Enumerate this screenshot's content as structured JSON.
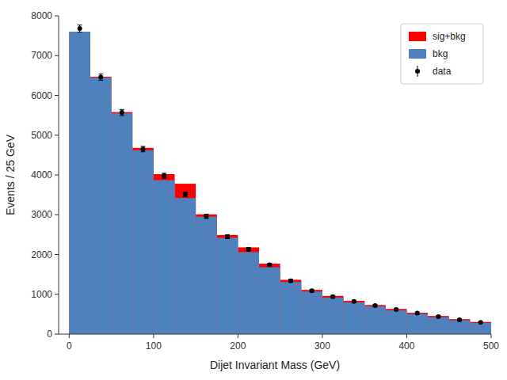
{
  "chart_data": {
    "type": "histogram",
    "xlabel": "Dijet Invariant Mass (GeV)",
    "ylabel": "Events / 25 GeV",
    "bins": [
      0,
      25,
      50,
      75,
      100,
      125,
      150,
      175,
      200,
      225,
      250,
      275,
      300,
      325,
      350,
      375,
      400,
      425,
      450,
      475,
      500
    ],
    "series": [
      {
        "name": "sig+bkg",
        "type": "bar",
        "color": "#ff0000",
        "values": [
          7600,
          6470,
          5580,
          4680,
          4020,
          3780,
          3010,
          2490,
          2180,
          1770,
          1365,
          1110,
          960,
          835,
          730,
          632,
          535,
          455,
          375,
          305
        ]
      },
      {
        "name": "bkg",
        "type": "bar",
        "color": "#4f81bd",
        "values": [
          7600,
          6450,
          5550,
          4620,
          3870,
          3420,
          2950,
          2420,
          2060,
          1680,
          1310,
          1070,
          920,
          800,
          700,
          600,
          505,
          425,
          350,
          280
        ]
      },
      {
        "name": "data",
        "type": "scatter",
        "color": "#000000",
        "marker": "circle",
        "x": [
          12.5,
          37.5,
          62.5,
          87.5,
          112.5,
          137.5,
          162.5,
          187.5,
          212.5,
          237.5,
          262.5,
          287.5,
          312.5,
          337.5,
          362.5,
          387.5,
          412.5,
          437.5,
          462.5,
          487.5
        ],
        "values": [
          7680,
          6460,
          5570,
          4650,
          3980,
          3510,
          2960,
          2450,
          2130,
          1740,
          1340,
          1090,
          940,
          820,
          715,
          615,
          525,
          440,
          360,
          295
        ],
        "errors": [
          88,
          80,
          75,
          68,
          63,
          59,
          54,
          50,
          46,
          42,
          37,
          33,
          31,
          29,
          27,
          25,
          23,
          21,
          19,
          17
        ]
      }
    ],
    "xlim": [
      -12.5,
      500
    ],
    "ylim": [
      0,
      8000
    ],
    "xticks": [
      0,
      100,
      200,
      300,
      400,
      500
    ],
    "yticks": [
      0,
      1000,
      2000,
      3000,
      4000,
      5000,
      6000,
      7000,
      8000
    ],
    "grid": false,
    "legend": "upper right"
  }
}
